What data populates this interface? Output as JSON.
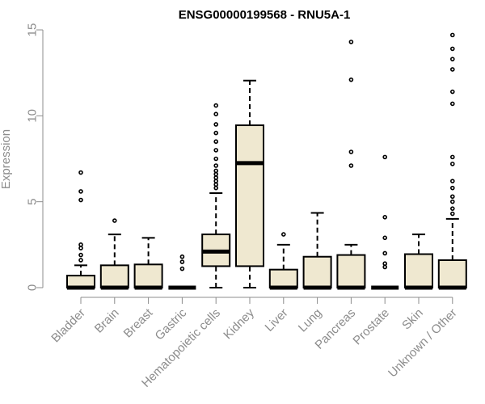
{
  "chart_data": {
    "type": "boxplot",
    "title": "ENSG00000199568 - RNU5A-1",
    "ylabel": "Expression",
    "xlabel": "",
    "ylim": [
      0,
      15
    ],
    "yticks": [
      0,
      5,
      10,
      15
    ],
    "grid": false,
    "colors": {
      "box_fill": "#efe8d0",
      "axis": "#8c8c8c"
    },
    "categories": [
      "Bladder",
      "Brain",
      "Breast",
      "Gastric",
      "Hematopoietic cells",
      "Kidney",
      "Liver",
      "Lung",
      "Pancreas",
      "Prostate",
      "Skin",
      "Unknown / Other"
    ],
    "boxes": [
      {
        "min": 0,
        "q1": 0,
        "median": 0,
        "q3": 0.7,
        "max": 1.3,
        "outliers": [
          1.6,
          1.9,
          2.3,
          2.5,
          5.1,
          5.6,
          6.7
        ]
      },
      {
        "min": 0,
        "q1": 0,
        "median": 0,
        "q3": 1.3,
        "max": 3.1,
        "outliers": [
          3.9
        ]
      },
      {
        "min": 0,
        "q1": 0,
        "median": 0,
        "q3": 1.35,
        "max": 2.9,
        "outliers": []
      },
      {
        "min": 0,
        "q1": 0,
        "median": 0,
        "q3": 0,
        "max": 0,
        "outliers": [
          1.1,
          1.5,
          1.8
        ]
      },
      {
        "min": 0,
        "q1": 1.25,
        "median": 2.1,
        "q3": 3.1,
        "max": 5.5,
        "outliers": [
          5.8,
          6.0,
          6.2,
          6.4,
          6.6,
          6.8,
          7.1,
          7.5,
          8.0,
          8.5,
          9.0,
          9.5,
          10.1,
          10.6
        ]
      },
      {
        "min": 0,
        "q1": 1.25,
        "median": 7.25,
        "q3": 9.45,
        "max": 12.05,
        "outliers": []
      },
      {
        "min": 0,
        "q1": 0,
        "median": 0,
        "q3": 1.05,
        "max": 2.5,
        "outliers": [
          3.1
        ]
      },
      {
        "min": 0,
        "q1": 0,
        "median": 0,
        "q3": 1.8,
        "max": 4.35,
        "outliers": []
      },
      {
        "min": 0,
        "q1": 0,
        "median": 0,
        "q3": 1.9,
        "max": 2.5,
        "outliers": [
          7.1,
          7.9,
          12.1,
          14.3
        ]
      },
      {
        "min": 0,
        "q1": 0,
        "median": 0,
        "q3": 0,
        "max": 0,
        "outliers": [
          1.2,
          1.4,
          2.0,
          2.9,
          4.1,
          7.6
        ]
      },
      {
        "min": 0,
        "q1": 0,
        "median": 0,
        "q3": 1.95,
        "max": 3.1,
        "outliers": []
      },
      {
        "min": 0,
        "q1": 0,
        "median": 0,
        "q3": 1.6,
        "max": 4.0,
        "outliers": [
          4.3,
          4.6,
          5.0,
          5.3,
          5.8,
          6.2,
          7.2,
          7.6,
          10.7,
          11.4,
          12.7,
          13.3,
          13.9,
          14.7
        ]
      }
    ]
  }
}
